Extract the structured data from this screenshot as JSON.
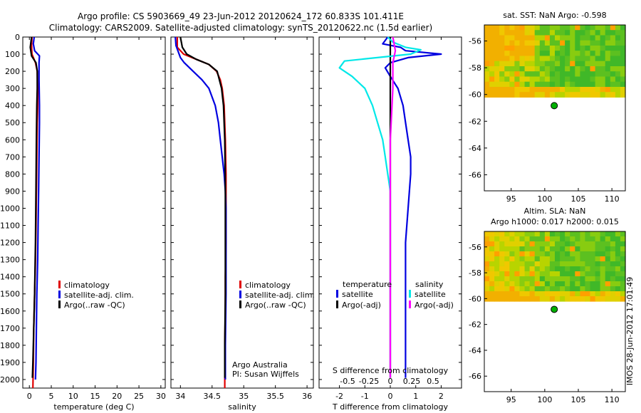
{
  "title": {
    "line1": "Argo profile: CS 5903669_49 23-Jun-2012 20120624_172 60.833S 101.411E",
    "line2": "Climatology: CARS2009. Satellite-adjusted climatology: synTS_20120622.nc (1.5d earlier)"
  },
  "stamp": "IMOS 28-Jun-2012 17:01:49",
  "colors": {
    "climatology": "#e00000",
    "satellite": "#0000e0",
    "argo": "#000000",
    "sal_satellite": "#00e8e8",
    "sal_argo": "#ff00ff",
    "marker": "#00b000",
    "map_yellow": "#f2c000",
    "map_green": "#4cc020"
  },
  "depth_axis": {
    "ylim": [
      0,
      2050
    ],
    "ticks": [
      0,
      100,
      200,
      300,
      400,
      500,
      600,
      700,
      800,
      900,
      1000,
      1100,
      1200,
      1300,
      1400,
      1500,
      1600,
      1700,
      1800,
      1900,
      2000
    ]
  },
  "chart_data": [
    {
      "type": "line",
      "xlabel": "temperature (deg C)",
      "xlim": [
        -1.5,
        31
      ],
      "xticks": [
        0,
        5,
        10,
        15,
        20,
        25,
        30
      ],
      "legend": {
        "position": "lower-middle",
        "entries": [
          "climatology",
          "satellite-adj. clim.",
          "Argo(..raw -QC)"
        ]
      },
      "series": [
        {
          "name": "climatology",
          "x": [
            0.6,
            0.5,
            0.6,
            1.4,
            1.8,
            1.9,
            1.9,
            1.8,
            1.7,
            1.6,
            1.5,
            1.4,
            1.2,
            1.0,
            0.9,
            0.8
          ],
          "y": [
            0,
            50,
            100,
            150,
            200,
            300,
            400,
            500,
            700,
            900,
            1100,
            1300,
            1500,
            1700,
            1900,
            2050
          ]
        },
        {
          "name": "satellite-adj. clim.",
          "x": [
            1.1,
            0.9,
            1.2,
            2.3,
            2.2,
            2.2,
            2.3,
            2.3,
            2.2,
            2.1,
            2.0,
            1.9,
            1.7,
            1.6,
            1.5,
            1.4
          ],
          "y": [
            0,
            40,
            80,
            110,
            150,
            250,
            400,
            500,
            700,
            900,
            1100,
            1300,
            1500,
            1700,
            1900,
            2000
          ]
        },
        {
          "name": "Argo(..raw -QC)",
          "x": [
            0.5,
            0.2,
            0.5,
            1.0,
            1.5,
            1.8,
            1.8,
            1.7,
            1.6,
            1.5,
            1.4,
            1.2,
            1.0,
            0.8,
            0.7
          ],
          "y": [
            0,
            60,
            110,
            130,
            150,
            200,
            300,
            400,
            600,
            900,
            1200,
            1500,
            1700,
            1900,
            1990
          ]
        }
      ]
    },
    {
      "type": "line",
      "xlabel": "salinity",
      "xlim": [
        33.85,
        36.1
      ],
      "xticks": [
        34,
        34.5,
        35,
        35.5,
        36
      ],
      "legend": {
        "position": "lower-middle",
        "entries": [
          "climatology",
          "satellite-adj. clim.",
          "Argo(..raw -QC)"
        ]
      },
      "annotation": [
        "Argo Australia",
        "PI: Susan Wijffels"
      ],
      "series": [
        {
          "name": "climatology",
          "x": [
            33.95,
            33.95,
            34.05,
            34.25,
            34.45,
            34.57,
            34.63,
            34.66,
            34.69,
            34.71,
            34.72,
            34.72,
            34.72,
            34.71,
            34.71,
            34.7,
            34.7,
            34.7
          ],
          "y": [
            0,
            60,
            100,
            130,
            160,
            200,
            250,
            300,
            400,
            600,
            800,
            1000,
            1200,
            1400,
            1600,
            1800,
            2000,
            2050
          ]
        },
        {
          "name": "satellite-adj. clim.",
          "x": [
            33.92,
            33.93,
            34.0,
            34.06,
            34.2,
            34.34,
            34.45,
            34.55,
            34.6,
            34.63,
            34.66,
            34.69,
            34.71,
            34.72,
            34.72,
            34.72,
            34.71,
            34.71
          ],
          "y": [
            0,
            50,
            120,
            150,
            200,
            250,
            300,
            400,
            500,
            600,
            700,
            800,
            900,
            1000,
            1200,
            1500,
            1800,
            2000
          ]
        },
        {
          "name": "Argo(..raw -QC)",
          "x": [
            34.0,
            34.03,
            34.1,
            34.25,
            34.45,
            34.58,
            34.65,
            34.68,
            34.7,
            34.71,
            34.71,
            34.71,
            34.7,
            34.7,
            34.7
          ],
          "y": [
            0,
            60,
            100,
            130,
            160,
            200,
            300,
            400,
            600,
            900,
            1200,
            1500,
            1800,
            1950,
            1990
          ]
        }
      ]
    },
    {
      "type": "line",
      "xlabel": "T difference from climatology",
      "x2label": "S difference from climatology",
      "xlim": [
        -2.8,
        2.8
      ],
      "xticks": [
        -2,
        -1,
        0,
        1,
        2
      ],
      "x2ticks": [
        -0.5,
        -0.25,
        0,
        0.25,
        0.5
      ],
      "legend": {
        "position": "lower",
        "groups": [
          {
            "title": "temperature",
            "entries": [
              "satellite",
              "Argo(-adj)"
            ]
          },
          {
            "title": "salinity",
            "entries": [
              "satellite",
              "Argo(-adj)"
            ]
          }
        ]
      },
      "series": [
        {
          "name": "satellite",
          "x": [
            -0.1,
            -0.3,
            0.4,
            0.6,
            2.0,
            0.7,
            0.0,
            -0.2,
            0.0,
            0.3,
            0.5,
            0.6,
            0.7,
            0.8,
            0.8,
            0.7,
            0.6,
            0.6,
            0.6,
            0.6,
            0.6,
            0.6
          ],
          "y": [
            0,
            40,
            60,
            80,
            100,
            120,
            150,
            180,
            230,
            300,
            400,
            500,
            600,
            700,
            800,
            1000,
            1200,
            1400,
            1600,
            1800,
            1900,
            1990
          ]
        },
        {
          "name": "Argo(-adj)",
          "x": [
            0,
            0,
            0,
            0
          ],
          "y": [
            0,
            500,
            1500,
            1990
          ]
        },
        {
          "name": "sal_satellite",
          "x": [
            -0.1,
            0.1,
            0.6,
            1.2,
            0.8,
            -1.8,
            -2.0,
            -1.5,
            -1.0,
            -0.7,
            -0.5,
            -0.3,
            -0.2,
            -0.1,
            0.0,
            0.0,
            0.0,
            0.0,
            0.0,
            0.0
          ],
          "y": [
            0,
            30,
            60,
            75,
            100,
            140,
            180,
            230,
            300,
            400,
            500,
            600,
            700,
            800,
            900,
            1100,
            1300,
            1500,
            1800,
            1990
          ]
        },
        {
          "name": "sal_argo",
          "x": [
            0.1,
            0.2,
            0.1,
            0.1,
            0.0,
            0.0,
            0.0,
            0.0,
            0.0
          ],
          "y": [
            0,
            80,
            150,
            300,
            600,
            900,
            1200,
            1600,
            1990
          ]
        }
      ]
    },
    {
      "type": "heatmap",
      "title": "sat. SST: NaN Argo: -0.598",
      "xlim": [
        91,
        112
      ],
      "ylim": [
        -67.2,
        -54.8
      ],
      "xticks": [
        95,
        100,
        105,
        110
      ],
      "yticks": [
        -56,
        -58,
        -60,
        -62,
        -64,
        -66
      ],
      "data_extent_lat": [
        -60.2,
        -54.8
      ],
      "marker": {
        "lon": 101.411,
        "lat": -60.833
      }
    },
    {
      "type": "heatmap",
      "title": "Altim. SLA: NaN",
      "subtitle": "Argo h1000: 0.017 h2000: 0.015",
      "xlim": [
        91,
        112
      ],
      "ylim": [
        -67.2,
        -54.8
      ],
      "xticks": [
        95,
        100,
        105,
        110
      ],
      "yticks": [
        -56,
        -58,
        -60,
        -62,
        -64,
        -66
      ],
      "data_extent_lat": [
        -60.2,
        -54.8
      ],
      "marker": {
        "lon": 101.411,
        "lat": -60.833
      }
    }
  ]
}
